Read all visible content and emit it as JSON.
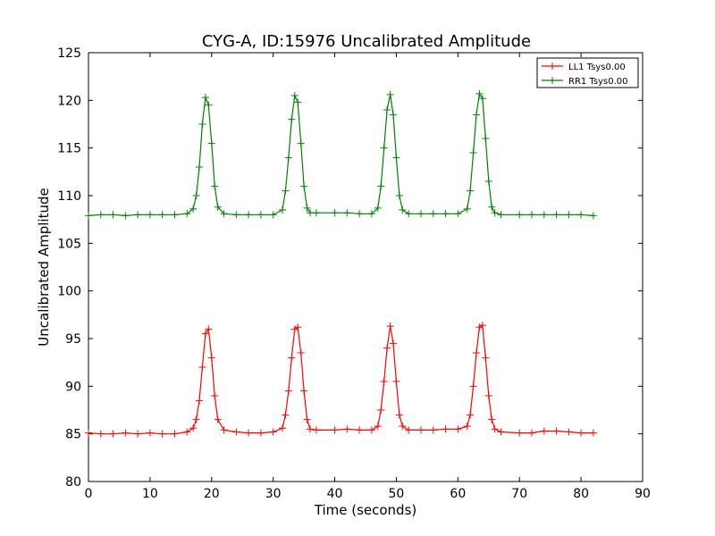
{
  "chart_data": {
    "type": "line",
    "title": "CYG-A, ID:15976 Uncalibrated Amplitude",
    "xlabel": "Time (seconds)",
    "ylabel": "Uncalibrated Amplitude",
    "xlim": [
      0,
      90
    ],
    "ylim": [
      80,
      125
    ],
    "x_ticks": [
      0,
      10,
      20,
      30,
      40,
      50,
      60,
      70,
      80,
      90
    ],
    "y_ticks": [
      80,
      85,
      90,
      95,
      100,
      105,
      110,
      115,
      120,
      125
    ],
    "grid": false,
    "legend_position": "top-right",
    "series": [
      {
        "name": "LL1 Tsys0.00",
        "color": "#ff0000",
        "marker": "plus",
        "x": [
          0,
          2,
          4,
          6,
          8,
          10,
          12,
          14,
          16,
          17,
          17.5,
          18,
          18.5,
          19,
          19.5,
          20,
          20.5,
          21,
          22,
          24,
          26,
          28,
          30,
          31.5,
          32,
          32.5,
          33,
          33.5,
          34,
          34.5,
          35,
          35.5,
          36,
          37,
          40,
          42,
          44,
          46,
          47,
          47.5,
          48,
          48.5,
          49,
          49.5,
          50,
          50.5,
          51,
          52,
          54,
          56,
          58,
          60,
          61.5,
          62,
          62.5,
          63,
          63.5,
          64,
          64.5,
          65,
          65.5,
          66,
          67,
          70,
          72,
          74,
          76,
          78,
          80,
          82
        ],
        "y": [
          85.1,
          85.0,
          85.0,
          85.1,
          85.0,
          85.1,
          85.0,
          85.0,
          85.2,
          85.6,
          86.5,
          88.5,
          92.0,
          95.5,
          96.0,
          93.0,
          89.0,
          86.5,
          85.4,
          85.2,
          85.1,
          85.1,
          85.2,
          85.6,
          87.0,
          89.5,
          93.0,
          96.0,
          96.2,
          93.5,
          89.5,
          86.5,
          85.5,
          85.4,
          85.4,
          85.5,
          85.4,
          85.4,
          85.8,
          87.5,
          90.5,
          94.0,
          96.3,
          94.5,
          90.5,
          87.0,
          85.8,
          85.4,
          85.4,
          85.4,
          85.5,
          85.5,
          85.8,
          87.0,
          90.0,
          93.5,
          96.2,
          96.4,
          93.0,
          89.0,
          86.5,
          85.5,
          85.2,
          85.1,
          85.1,
          85.3,
          85.3,
          85.2,
          85.1,
          85.1
        ]
      },
      {
        "name": "RR1 Tsys0.00",
        "color": "#008000",
        "marker": "plus",
        "x": [
          0,
          2,
          4,
          6,
          8,
          10,
          12,
          14,
          16,
          17,
          17.5,
          18,
          18.5,
          19,
          19.5,
          20,
          20.5,
          21,
          22,
          24,
          26,
          28,
          30,
          31.5,
          32,
          32.5,
          33,
          33.5,
          34,
          34.5,
          35,
          35.5,
          36,
          37,
          40,
          42,
          44,
          46,
          47,
          47.5,
          48,
          48.5,
          49,
          49.5,
          50,
          50.5,
          51,
          52,
          54,
          56,
          58,
          60,
          61.5,
          62,
          62.5,
          63,
          63.5,
          64,
          64.5,
          65,
          65.5,
          66,
          67,
          70,
          72,
          74,
          76,
          78,
          80,
          82
        ],
        "y": [
          107.9,
          108.0,
          108.0,
          107.9,
          108.0,
          108.0,
          108.0,
          108.0,
          108.1,
          108.6,
          110.0,
          113.0,
          117.5,
          120.3,
          119.5,
          115.5,
          111.0,
          108.8,
          108.1,
          108.0,
          108.0,
          108.0,
          108.0,
          108.5,
          110.5,
          114.0,
          118.0,
          120.5,
          119.8,
          115.5,
          111.0,
          108.7,
          108.2,
          108.2,
          108.2,
          108.2,
          108.1,
          108.1,
          108.7,
          111.0,
          115.0,
          119.0,
          120.6,
          118.5,
          114.0,
          110.0,
          108.5,
          108.1,
          108.1,
          108.1,
          108.1,
          108.1,
          108.6,
          110.5,
          114.5,
          118.5,
          120.7,
          120.2,
          116.0,
          111.5,
          108.8,
          108.2,
          108.0,
          108.0,
          108.0,
          108.0,
          108.0,
          108.0,
          108.0,
          107.9
        ]
      }
    ]
  }
}
